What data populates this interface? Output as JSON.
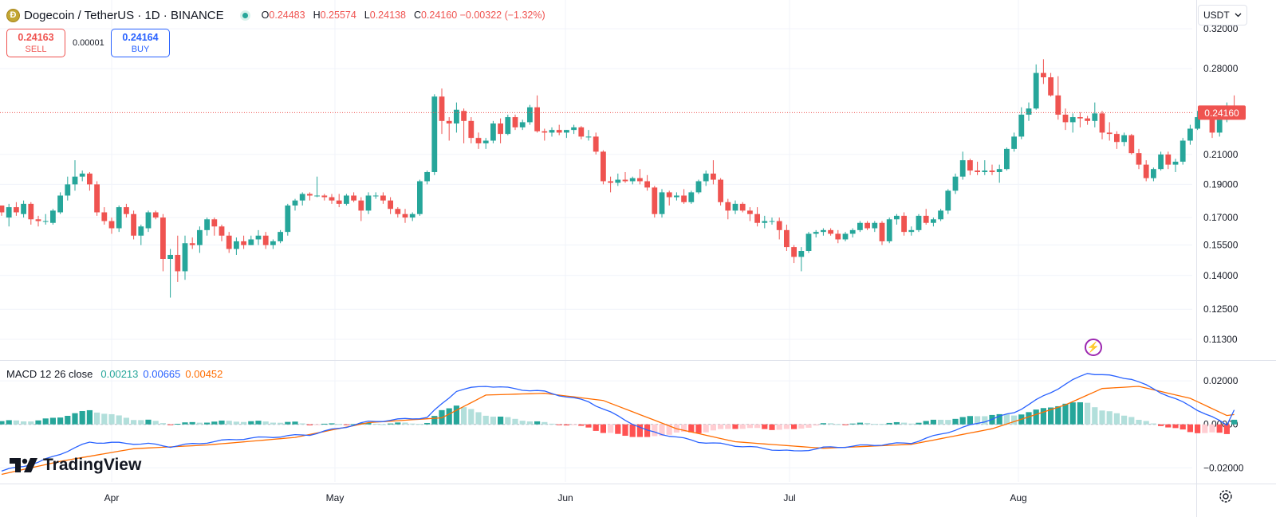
{
  "header": {
    "coin_glyph": "Ð",
    "title": "Dogecoin / TetherUS · 1D · BINANCE",
    "ohlc": [
      {
        "k": "O",
        "v": "0.24483"
      },
      {
        "k": "H",
        "v": "0.25574"
      },
      {
        "k": "L",
        "v": "0.24138"
      },
      {
        "k": "C",
        "v": "0.24160 −0.00322 (−1.32%)"
      }
    ]
  },
  "trade": {
    "sell_price": "0.24163",
    "sell_label": "SELL",
    "buy_price": "0.24164",
    "buy_label": "BUY",
    "spread": "0.00001"
  },
  "currency_select": "USDT",
  "last_price_label": "0.24160",
  "macd_legend": {
    "label": "MACD 12 26 close",
    "hist": "0.00213",
    "macd": "0.00665",
    "signal": "0.00452"
  },
  "brand": "TradingView",
  "colors": {
    "up": "#26a69a",
    "down": "#ef5350",
    "macd": "#2962ff",
    "signal": "#ff6d00"
  },
  "chart_data": [
    {
      "type": "candlestick",
      "title": "Dogecoin / TetherUS · 1D · BINANCE",
      "x_ticks": [
        "Apr",
        "May",
        "Jun",
        "Jul",
        "Aug"
      ],
      "y_ticks": [
        "0.32000",
        "0.28000",
        "0.21000",
        "0.19000",
        "0.17000",
        "0.15500",
        "0.14000",
        "0.12500",
        "0.11300"
      ],
      "y_scale": "log",
      "ylim": [
        0.106,
        0.345
      ],
      "last_price": 0.2416,
      "candles_ohlc": [
        [
          0.177,
          0.176,
          0.171,
          0.173
        ],
        [
          0.17,
          0.178,
          0.165,
          0.176
        ],
        [
          0.176,
          0.179,
          0.171,
          0.173
        ],
        [
          0.172,
          0.18,
          0.17,
          0.178
        ],
        [
          0.178,
          0.179,
          0.166,
          0.169
        ],
        [
          0.169,
          0.171,
          0.165,
          0.168
        ],
        [
          0.168,
          0.172,
          0.166,
          0.168
        ],
        [
          0.167,
          0.175,
          0.166,
          0.174
        ],
        [
          0.173,
          0.185,
          0.172,
          0.183
        ],
        [
          0.183,
          0.195,
          0.18,
          0.19
        ],
        [
          0.19,
          0.206,
          0.186,
          0.195
        ],
        [
          0.195,
          0.199,
          0.192,
          0.197
        ],
        [
          0.197,
          0.198,
          0.186,
          0.19
        ],
        [
          0.19,
          0.192,
          0.171,
          0.173
        ],
        [
          0.173,
          0.176,
          0.166,
          0.168
        ],
        [
          0.168,
          0.17,
          0.161,
          0.164
        ],
        [
          0.164,
          0.177,
          0.162,
          0.176
        ],
        [
          0.176,
          0.178,
          0.17,
          0.172
        ],
        [
          0.172,
          0.174,
          0.158,
          0.16
        ],
        [
          0.16,
          0.166,
          0.155,
          0.165
        ],
        [
          0.164,
          0.174,
          0.162,
          0.173
        ],
        [
          0.173,
          0.174,
          0.169,
          0.17
        ],
        [
          0.17,
          0.172,
          0.142,
          0.148
        ],
        [
          0.148,
          0.153,
          0.13,
          0.15
        ],
        [
          0.15,
          0.16,
          0.137,
          0.142
        ],
        [
          0.142,
          0.16,
          0.138,
          0.156
        ],
        [
          0.156,
          0.159,
          0.153,
          0.155
        ],
        [
          0.155,
          0.165,
          0.151,
          0.163
        ],
        [
          0.163,
          0.17,
          0.16,
          0.169
        ],
        [
          0.169,
          0.17,
          0.16,
          0.165
        ],
        [
          0.165,
          0.166,
          0.157,
          0.16
        ],
        [
          0.16,
          0.162,
          0.151,
          0.153
        ],
        [
          0.153,
          0.159,
          0.15,
          0.157
        ],
        [
          0.157,
          0.16,
          0.153,
          0.155
        ],
        [
          0.155,
          0.16,
          0.155,
          0.158
        ],
        [
          0.158,
          0.163,
          0.155,
          0.16
        ],
        [
          0.16,
          0.162,
          0.153,
          0.155
        ],
        [
          0.155,
          0.158,
          0.153,
          0.157
        ],
        [
          0.157,
          0.163,
          0.156,
          0.162
        ],
        [
          0.162,
          0.178,
          0.16,
          0.177
        ],
        [
          0.177,
          0.181,
          0.174,
          0.18
        ],
        [
          0.18,
          0.185,
          0.177,
          0.184
        ],
        [
          0.184,
          0.185,
          0.18,
          0.183
        ],
        [
          0.183,
          0.195,
          0.182,
          0.183
        ],
        [
          0.183,
          0.184,
          0.18,
          0.182
        ],
        [
          0.182,
          0.184,
          0.178,
          0.18
        ],
        [
          0.18,
          0.184,
          0.176,
          0.178
        ],
        [
          0.178,
          0.184,
          0.177,
          0.183
        ],
        [
          0.183,
          0.185,
          0.179,
          0.18
        ],
        [
          0.18,
          0.182,
          0.168,
          0.174
        ],
        [
          0.174,
          0.185,
          0.172,
          0.183
        ],
        [
          0.183,
          0.185,
          0.181,
          0.183
        ],
        [
          0.183,
          0.185,
          0.178,
          0.18
        ],
        [
          0.18,
          0.182,
          0.172,
          0.175
        ],
        [
          0.175,
          0.176,
          0.17,
          0.172
        ],
        [
          0.172,
          0.175,
          0.167,
          0.17
        ],
        [
          0.17,
          0.173,
          0.168,
          0.172
        ],
        [
          0.172,
          0.193,
          0.171,
          0.192
        ],
        [
          0.192,
          0.199,
          0.19,
          0.198
        ],
        [
          0.198,
          0.257,
          0.196,
          0.255
        ],
        [
          0.255,
          0.262,
          0.225,
          0.235
        ],
        [
          0.235,
          0.238,
          0.22,
          0.233
        ],
        [
          0.233,
          0.25,
          0.226,
          0.244
        ],
        [
          0.243,
          0.245,
          0.218,
          0.235
        ],
        [
          0.235,
          0.238,
          0.218,
          0.222
        ],
        [
          0.222,
          0.226,
          0.214,
          0.218
        ],
        [
          0.218,
          0.222,
          0.214,
          0.22
        ],
        [
          0.22,
          0.235,
          0.218,
          0.233
        ],
        [
          0.233,
          0.237,
          0.218,
          0.225
        ],
        [
          0.225,
          0.24,
          0.224,
          0.238
        ],
        [
          0.238,
          0.24,
          0.228,
          0.23
        ],
        [
          0.23,
          0.236,
          0.228,
          0.234
        ],
        [
          0.234,
          0.248,
          0.232,
          0.246
        ],
        [
          0.246,
          0.256,
          0.226,
          0.227
        ],
        [
          0.227,
          0.229,
          0.22,
          0.226
        ],
        [
          0.226,
          0.23,
          0.223,
          0.228
        ],
        [
          0.228,
          0.232,
          0.224,
          0.226
        ],
        [
          0.226,
          0.228,
          0.222,
          0.228
        ],
        [
          0.228,
          0.232,
          0.225,
          0.23
        ],
        [
          0.23,
          0.231,
          0.221,
          0.223
        ],
        [
          0.223,
          0.228,
          0.22,
          0.223
        ],
        [
          0.223,
          0.226,
          0.21,
          0.212
        ],
        [
          0.212,
          0.213,
          0.19,
          0.192
        ],
        [
          0.192,
          0.195,
          0.185,
          0.191
        ],
        [
          0.191,
          0.197,
          0.189,
          0.193
        ],
        [
          0.193,
          0.198,
          0.191,
          0.192
        ],
        [
          0.192,
          0.195,
          0.19,
          0.194
        ],
        [
          0.194,
          0.2,
          0.19,
          0.192
        ],
        [
          0.192,
          0.196,
          0.186,
          0.188
        ],
        [
          0.188,
          0.189,
          0.17,
          0.172
        ],
        [
          0.172,
          0.187,
          0.17,
          0.185
        ],
        [
          0.185,
          0.186,
          0.177,
          0.182
        ],
        [
          0.182,
          0.185,
          0.18,
          0.183
        ],
        [
          0.183,
          0.187,
          0.178,
          0.179
        ],
        [
          0.179,
          0.186,
          0.178,
          0.185
        ],
        [
          0.185,
          0.193,
          0.184,
          0.192
        ],
        [
          0.192,
          0.199,
          0.189,
          0.197
        ],
        [
          0.197,
          0.206,
          0.19,
          0.193
        ],
        [
          0.193,
          0.194,
          0.177,
          0.179
        ],
        [
          0.179,
          0.181,
          0.169,
          0.174
        ],
        [
          0.174,
          0.18,
          0.172,
          0.178
        ],
        [
          0.178,
          0.179,
          0.173,
          0.174
        ],
        [
          0.174,
          0.176,
          0.168,
          0.172
        ],
        [
          0.172,
          0.176,
          0.165,
          0.167
        ],
        [
          0.167,
          0.171,
          0.164,
          0.168
        ],
        [
          0.168,
          0.17,
          0.166,
          0.168
        ],
        [
          0.168,
          0.17,
          0.158,
          0.163
        ],
        [
          0.163,
          0.166,
          0.152,
          0.154
        ],
        [
          0.154,
          0.155,
          0.146,
          0.149
        ],
        [
          0.149,
          0.154,
          0.142,
          0.152
        ],
        [
          0.152,
          0.162,
          0.151,
          0.161
        ],
        [
          0.161,
          0.163,
          0.159,
          0.162
        ],
        [
          0.162,
          0.164,
          0.16,
          0.163
        ],
        [
          0.163,
          0.164,
          0.16,
          0.161
        ],
        [
          0.161,
          0.163,
          0.156,
          0.158
        ],
        [
          0.158,
          0.162,
          0.157,
          0.161
        ],
        [
          0.161,
          0.164,
          0.159,
          0.163
        ],
        [
          0.163,
          0.168,
          0.162,
          0.167
        ],
        [
          0.167,
          0.168,
          0.163,
          0.164
        ],
        [
          0.164,
          0.168,
          0.162,
          0.167
        ],
        [
          0.167,
          0.168,
          0.155,
          0.157
        ],
        [
          0.157,
          0.17,
          0.156,
          0.169
        ],
        [
          0.169,
          0.172,
          0.166,
          0.171
        ],
        [
          0.171,
          0.173,
          0.16,
          0.162
        ],
        [
          0.162,
          0.165,
          0.16,
          0.163
        ],
        [
          0.163,
          0.172,
          0.162,
          0.171
        ],
        [
          0.171,
          0.175,
          0.166,
          0.167
        ],
        [
          0.167,
          0.17,
          0.165,
          0.169
        ],
        [
          0.169,
          0.175,
          0.168,
          0.174
        ],
        [
          0.174,
          0.187,
          0.172,
          0.186
        ],
        [
          0.186,
          0.197,
          0.184,
          0.195
        ],
        [
          0.195,
          0.212,
          0.193,
          0.206
        ],
        [
          0.206,
          0.207,
          0.196,
          0.199
        ],
        [
          0.199,
          0.205,
          0.196,
          0.198
        ],
        [
          0.198,
          0.206,
          0.196,
          0.199
        ],
        [
          0.199,
          0.203,
          0.196,
          0.198
        ],
        [
          0.198,
          0.203,
          0.191,
          0.2
        ],
        [
          0.2,
          0.215,
          0.199,
          0.214
        ],
        [
          0.214,
          0.226,
          0.212,
          0.223
        ],
        [
          0.223,
          0.246,
          0.221,
          0.24
        ],
        [
          0.24,
          0.25,
          0.235,
          0.245
        ],
        [
          0.245,
          0.284,
          0.244,
          0.276
        ],
        [
          0.276,
          0.289,
          0.266,
          0.272
        ],
        [
          0.272,
          0.276,
          0.255,
          0.256
        ],
        [
          0.256,
          0.273,
          0.236,
          0.24
        ],
        [
          0.24,
          0.245,
          0.228,
          0.234
        ],
        [
          0.234,
          0.241,
          0.226,
          0.238
        ],
        [
          0.238,
          0.242,
          0.23,
          0.237
        ],
        [
          0.237,
          0.239,
          0.232,
          0.235
        ],
        [
          0.235,
          0.25,
          0.23,
          0.241
        ],
        [
          0.241,
          0.243,
          0.221,
          0.226
        ],
        [
          0.226,
          0.234,
          0.22,
          0.225
        ],
        [
          0.225,
          0.227,
          0.214,
          0.219
        ],
        [
          0.219,
          0.226,
          0.216,
          0.224
        ],
        [
          0.224,
          0.225,
          0.21,
          0.211
        ],
        [
          0.211,
          0.214,
          0.2,
          0.203
        ],
        [
          0.203,
          0.206,
          0.192,
          0.194
        ],
        [
          0.194,
          0.201,
          0.192,
          0.2
        ],
        [
          0.2,
          0.212,
          0.199,
          0.21
        ],
        [
          0.21,
          0.212,
          0.2,
          0.203
        ],
        [
          0.203,
          0.207,
          0.198,
          0.205
        ],
        [
          0.205,
          0.222,
          0.203,
          0.22
        ],
        [
          0.22,
          0.232,
          0.217,
          0.229
        ],
        [
          0.229,
          0.243,
          0.228,
          0.238
        ],
        [
          0.238,
          0.242,
          0.236,
          0.24
        ],
        [
          0.24,
          0.242,
          0.222,
          0.226
        ],
        [
          0.226,
          0.24,
          0.223,
          0.236
        ],
        [
          0.236,
          0.25,
          0.234,
          0.245
        ],
        [
          0.245,
          0.256,
          0.241,
          0.2416
        ]
      ]
    },
    {
      "type": "macd",
      "name": "MACD 12 26 close",
      "y_ticks": [
        "0.02000",
        "0.00000",
        "−0.02000"
      ],
      "ylim": [
        -0.0265,
        0.0285
      ],
      "last_values": {
        "histogram": 0.00213,
        "macd": 0.00665,
        "signal": 0.00452
      },
      "macd_keyframes": [
        [
          0,
          -0.0215
        ],
        [
          5,
          -0.0175
        ],
        [
          12,
          -0.0082
        ],
        [
          20,
          -0.009
        ],
        [
          23,
          -0.0102
        ],
        [
          32,
          -0.0068
        ],
        [
          42,
          -0.0047
        ],
        [
          50,
          0.0012
        ],
        [
          58,
          0.0032
        ],
        [
          62,
          0.0155
        ],
        [
          66,
          0.0178
        ],
        [
          74,
          0.015
        ],
        [
          80,
          0.0105
        ],
        [
          88,
          -0.003
        ],
        [
          95,
          -0.008
        ],
        [
          108,
          -0.0125
        ],
        [
          112,
          -0.0108
        ],
        [
          124,
          -0.0085
        ],
        [
          138,
          0.0055
        ],
        [
          145,
          0.0185
        ],
        [
          148,
          0.0237
        ],
        [
          154,
          0.021
        ],
        [
          162,
          0.0085
        ],
        [
          168,
          -0.002
        ],
        [
          172,
          -0.0015
        ],
        [
          178,
          0.0065
        ]
      ],
      "signal_keyframes": [
        [
          0,
          -0.023
        ],
        [
          8,
          -0.017
        ],
        [
          18,
          -0.0112
        ],
        [
          28,
          -0.0095
        ],
        [
          40,
          -0.006
        ],
        [
          50,
          0.0008
        ],
        [
          60,
          0.003
        ],
        [
          66,
          0.0135
        ],
        [
          74,
          0.0143
        ],
        [
          82,
          0.011
        ],
        [
          92,
          -0.002
        ],
        [
          100,
          -0.008
        ],
        [
          112,
          -0.011
        ],
        [
          124,
          -0.0092
        ],
        [
          135,
          -0.002
        ],
        [
          145,
          0.009
        ],
        [
          150,
          0.0165
        ],
        [
          155,
          0.0175
        ],
        [
          162,
          0.012
        ],
        [
          168,
          0.0025
        ],
        [
          172,
          0.0028
        ],
        [
          178,
          0.0045
        ]
      ]
    }
  ]
}
